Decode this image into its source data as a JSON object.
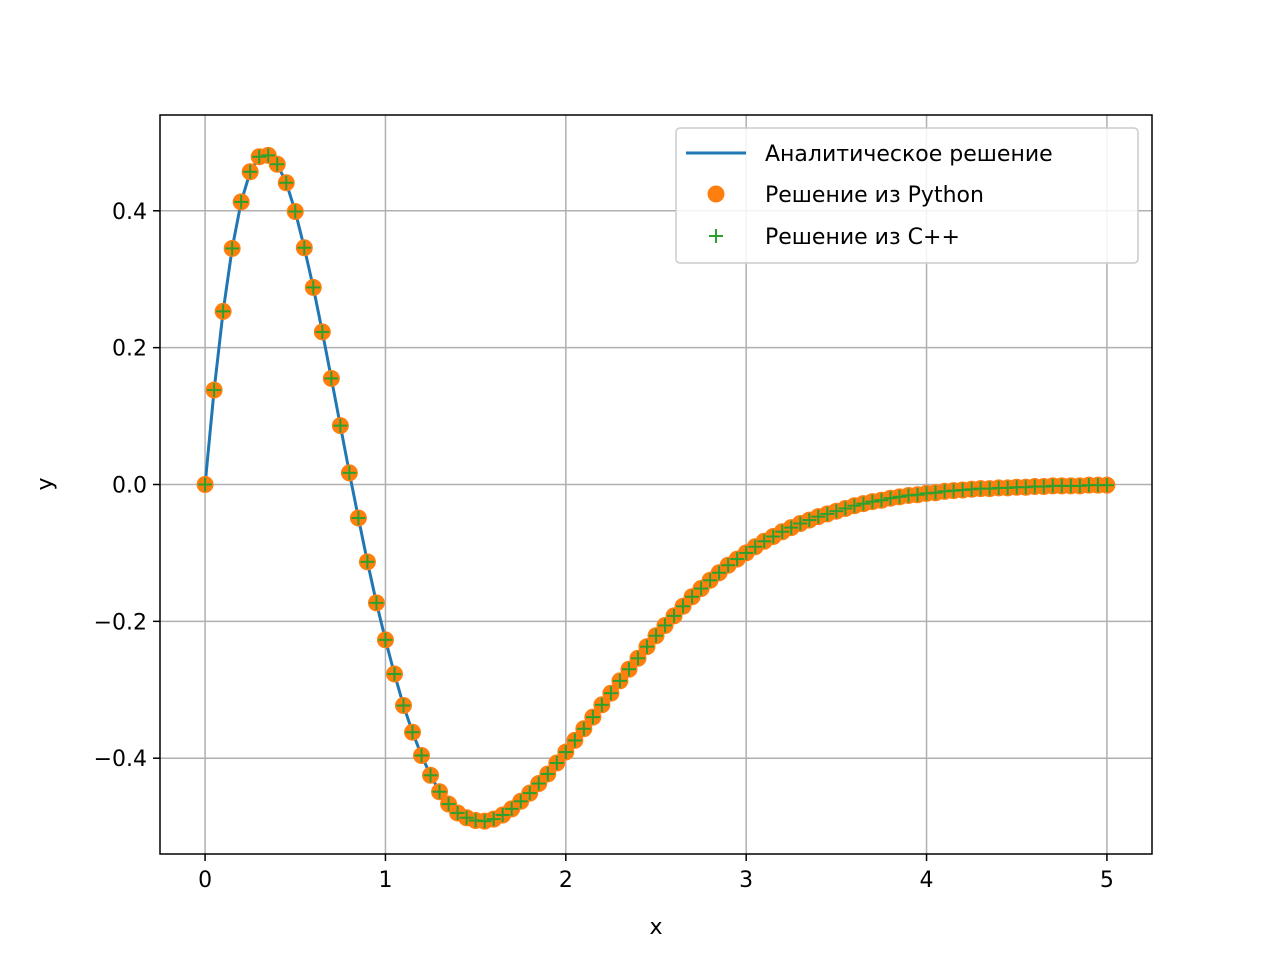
{
  "chart_data": {
    "type": "line",
    "title": "",
    "xlabel": "x",
    "ylabel": "y",
    "xlim": [
      -0.25,
      5.25
    ],
    "ylim": [
      -0.54,
      0.54
    ],
    "xticks": [
      0,
      1,
      2,
      3,
      4,
      5
    ],
    "xtick_labels": [
      "0",
      "1",
      "2",
      "3",
      "4",
      "5"
    ],
    "yticks": [
      -0.4,
      -0.2,
      0.0,
      0.2,
      0.4
    ],
    "ytick_labels": [
      "−0.4",
      "−0.2",
      "0.0",
      "0.2",
      "0.4"
    ],
    "grid": true,
    "legend_position": "top-right",
    "x": [
      0.0,
      0.05,
      0.1,
      0.15,
      0.2,
      0.25,
      0.3,
      0.35,
      0.4,
      0.45,
      0.5,
      0.55,
      0.6,
      0.65,
      0.7,
      0.75,
      0.8,
      0.85,
      0.9,
      0.95,
      1.0,
      1.05,
      1.1,
      1.15,
      1.2,
      1.25,
      1.3,
      1.35,
      1.4,
      1.45,
      1.5,
      1.55,
      1.6,
      1.65,
      1.7,
      1.75,
      1.8,
      1.85,
      1.9,
      1.95,
      2.0,
      2.05,
      2.1,
      2.15,
      2.2,
      2.25,
      2.3,
      2.35,
      2.4,
      2.45,
      2.5,
      2.55,
      2.6,
      2.65,
      2.7,
      2.75,
      2.8,
      2.85,
      2.9,
      2.95,
      3.0,
      3.05,
      3.1,
      3.15,
      3.2,
      3.25,
      3.3,
      3.35,
      3.4,
      3.45,
      3.5,
      3.55,
      3.6,
      3.65,
      3.7,
      3.75,
      3.8,
      3.85,
      3.9,
      3.95,
      4.0,
      4.05,
      4.1,
      4.15,
      4.2,
      4.25,
      4.3,
      4.35,
      4.4,
      4.45,
      4.5,
      4.55,
      4.6,
      4.65,
      4.7,
      4.75,
      4.8,
      4.85,
      4.9,
      4.95,
      5.0
    ],
    "series": [
      {
        "name": "Аналитическое решение",
        "style": "line",
        "color": "#1f77b4",
        "values": [
          0.0,
          0.138,
          0.253,
          0.345,
          0.413,
          0.457,
          0.479,
          0.481,
          0.468,
          0.441,
          0.399,
          0.346,
          0.288,
          0.223,
          0.155,
          0.086,
          0.017,
          -0.049,
          -0.113,
          -0.173,
          -0.227,
          -0.277,
          -0.323,
          -0.362,
          -0.396,
          -0.425,
          -0.449,
          -0.467,
          -0.48,
          -0.487,
          -0.491,
          -0.492,
          -0.489,
          -0.483,
          -0.474,
          -0.463,
          -0.451,
          -0.437,
          -0.423,
          -0.407,
          -0.391,
          -0.374,
          -0.357,
          -0.34,
          -0.322,
          -0.305,
          -0.287,
          -0.27,
          -0.254,
          -0.237,
          -0.221,
          -0.206,
          -0.192,
          -0.178,
          -0.164,
          -0.152,
          -0.14,
          -0.129,
          -0.118,
          -0.109,
          -0.1,
          -0.091,
          -0.083,
          -0.076,
          -0.069,
          -0.063,
          -0.057,
          -0.052,
          -0.047,
          -0.043,
          -0.039,
          -0.035,
          -0.031,
          -0.028,
          -0.025,
          -0.023,
          -0.02,
          -0.018,
          -0.016,
          -0.015,
          -0.013,
          -0.012,
          -0.01,
          -0.009,
          -0.008,
          -0.007,
          -0.006,
          -0.006,
          -0.005,
          -0.005,
          -0.004,
          -0.004,
          -0.003,
          -0.003,
          -0.002,
          -0.002,
          -0.002,
          -0.002,
          -0.001,
          -0.001,
          -0.001
        ]
      },
      {
        "name": "Решение из Python",
        "style": "marker-circle",
        "color": "#ff7f0e",
        "values": [
          0.0,
          0.138,
          0.253,
          0.345,
          0.413,
          0.457,
          0.479,
          0.481,
          0.468,
          0.441,
          0.399,
          0.346,
          0.288,
          0.223,
          0.155,
          0.086,
          0.017,
          -0.049,
          -0.113,
          -0.173,
          -0.227,
          -0.277,
          -0.323,
          -0.362,
          -0.396,
          -0.425,
          -0.449,
          -0.467,
          -0.48,
          -0.487,
          -0.491,
          -0.492,
          -0.489,
          -0.483,
          -0.474,
          -0.463,
          -0.451,
          -0.437,
          -0.423,
          -0.407,
          -0.391,
          -0.374,
          -0.357,
          -0.34,
          -0.322,
          -0.305,
          -0.287,
          -0.27,
          -0.254,
          -0.237,
          -0.221,
          -0.206,
          -0.192,
          -0.178,
          -0.164,
          -0.152,
          -0.14,
          -0.129,
          -0.118,
          -0.109,
          -0.1,
          -0.091,
          -0.083,
          -0.076,
          -0.069,
          -0.063,
          -0.057,
          -0.052,
          -0.047,
          -0.043,
          -0.039,
          -0.035,
          -0.031,
          -0.028,
          -0.025,
          -0.023,
          -0.02,
          -0.018,
          -0.016,
          -0.015,
          -0.013,
          -0.012,
          -0.01,
          -0.009,
          -0.008,
          -0.007,
          -0.006,
          -0.006,
          -0.005,
          -0.005,
          -0.004,
          -0.004,
          -0.003,
          -0.003,
          -0.002,
          -0.002,
          -0.002,
          -0.002,
          -0.001,
          -0.001,
          -0.001
        ]
      },
      {
        "name": "Решение из C++",
        "style": "marker-plus",
        "color": "#2ca02c",
        "values": [
          0.0,
          0.138,
          0.253,
          0.345,
          0.413,
          0.457,
          0.479,
          0.481,
          0.468,
          0.441,
          0.399,
          0.346,
          0.288,
          0.223,
          0.155,
          0.086,
          0.017,
          -0.049,
          -0.113,
          -0.173,
          -0.227,
          -0.277,
          -0.323,
          -0.362,
          -0.396,
          -0.425,
          -0.449,
          -0.467,
          -0.48,
          -0.487,
          -0.491,
          -0.492,
          -0.489,
          -0.483,
          -0.474,
          -0.463,
          -0.451,
          -0.437,
          -0.423,
          -0.407,
          -0.391,
          -0.374,
          -0.357,
          -0.34,
          -0.322,
          -0.305,
          -0.287,
          -0.27,
          -0.254,
          -0.237,
          -0.221,
          -0.206,
          -0.192,
          -0.178,
          -0.164,
          -0.152,
          -0.14,
          -0.129,
          -0.118,
          -0.109,
          -0.1,
          -0.091,
          -0.083,
          -0.076,
          -0.069,
          -0.063,
          -0.057,
          -0.052,
          -0.047,
          -0.043,
          -0.039,
          -0.035,
          -0.031,
          -0.028,
          -0.025,
          -0.023,
          -0.02,
          -0.018,
          -0.016,
          -0.015,
          -0.013,
          -0.012,
          -0.01,
          -0.009,
          -0.008,
          -0.007,
          -0.006,
          -0.006,
          -0.005,
          -0.005,
          -0.004,
          -0.004,
          -0.003,
          -0.003,
          -0.002,
          -0.002,
          -0.002,
          -0.002,
          -0.001,
          -0.001,
          -0.001
        ]
      }
    ]
  }
}
